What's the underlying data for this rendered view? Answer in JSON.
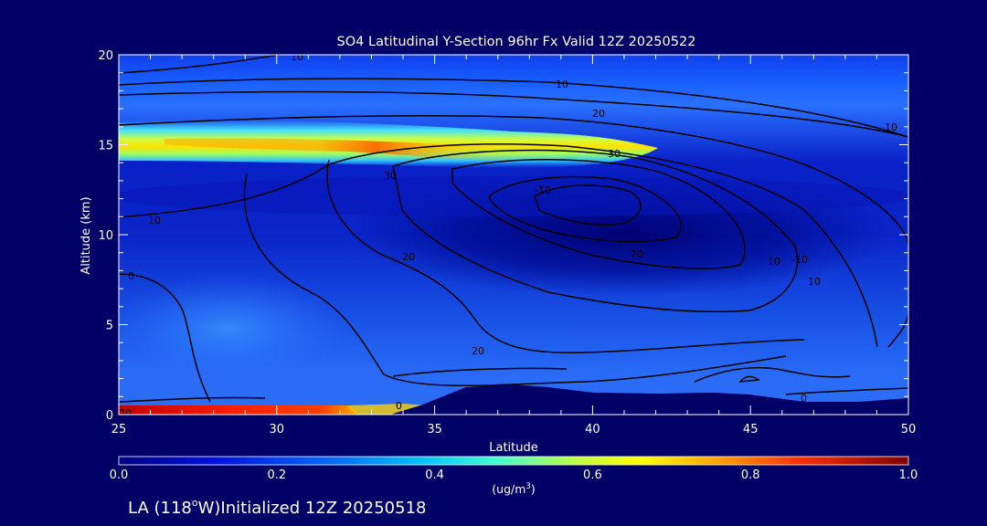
{
  "chart_data": {
    "type": "heatmap",
    "title": "SO4 Latitudinal Y-Section 96hr  Fx Valid 12Z 20250522",
    "xlabel": "Latitude",
    "ylabel": "Altitude (km)",
    "xlim": [
      25,
      50
    ],
    "ylim": [
      0,
      20
    ],
    "x_ticks": [
      25,
      30,
      35,
      40,
      45,
      50
    ],
    "y_ticks": [
      0,
      5,
      10,
      15,
      20
    ],
    "colorbar": {
      "min": 0.0,
      "max": 1.0,
      "ticks": [
        "0.0",
        "0.2",
        "0.4",
        "0.6",
        "0.8",
        "1.0"
      ],
      "unit_prefix": "(ug/m",
      "unit_sup": "3",
      "unit_suffix": ")"
    },
    "footer": {
      "prefix": "LA (118",
      "degree": "o",
      "suffix": "W)Initialized 12Z 20250518"
    },
    "contour_labels": [
      "10",
      "10",
      "20",
      "30",
      "-10",
      "10",
      "20",
      "10",
      "20",
      "30",
      "20",
      "-10",
      "10",
      "0",
      "0",
      "20",
      "0",
      "10"
    ],
    "colors": {
      "background": "#000066",
      "text": "#ffffff",
      "contour": "#000000",
      "terrain": "#000066"
    }
  }
}
